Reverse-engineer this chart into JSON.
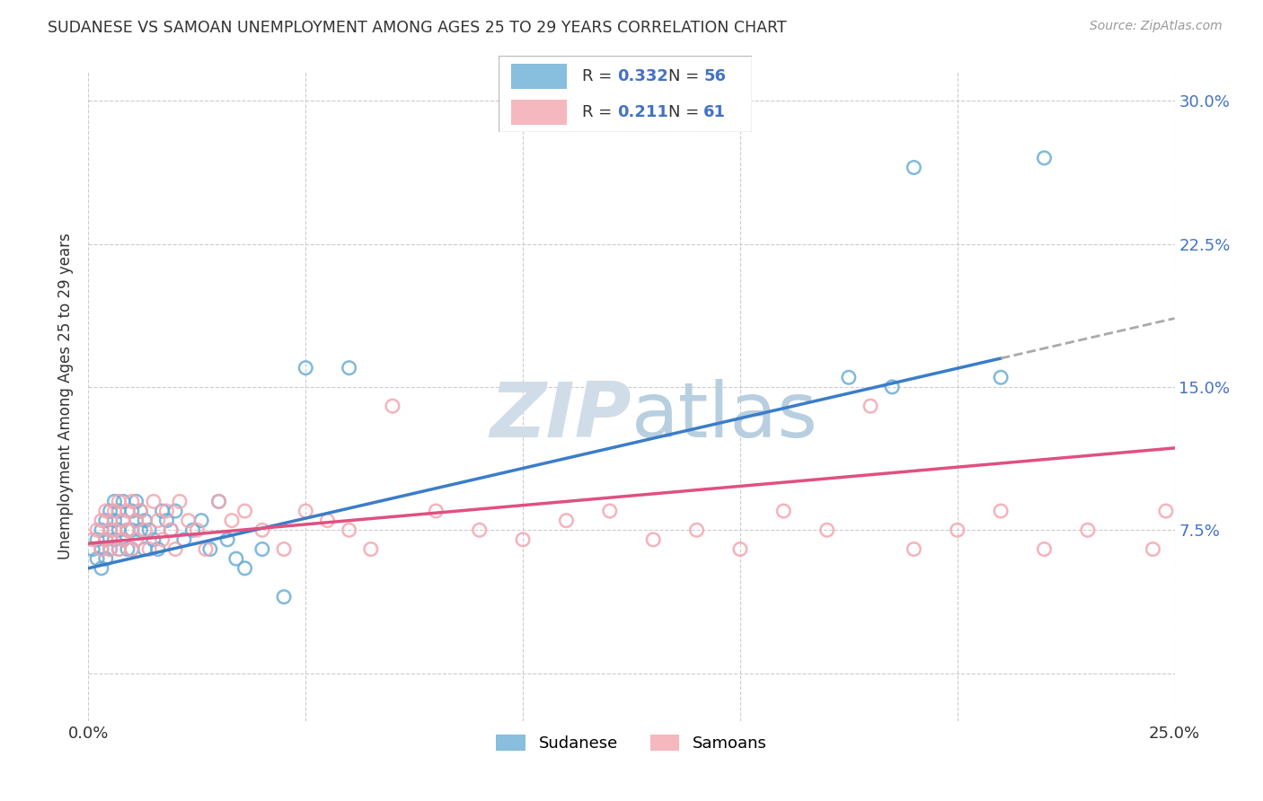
{
  "title": "SUDANESE VS SAMOAN UNEMPLOYMENT AMONG AGES 25 TO 29 YEARS CORRELATION CHART",
  "source": "Source: ZipAtlas.com",
  "ylabel": "Unemployment Among Ages 25 to 29 years",
  "xlim": [
    0.0,
    0.25
  ],
  "ylim": [
    -0.025,
    0.315
  ],
  "xticks": [
    0.0,
    0.05,
    0.1,
    0.15,
    0.2,
    0.25
  ],
  "xticklabels": [
    "0.0%",
    "",
    "",
    "",
    "",
    "25.0%"
  ],
  "yticks": [
    0.0,
    0.075,
    0.15,
    0.225,
    0.3
  ],
  "right_yticklabels": [
    "",
    "7.5%",
    "15.0%",
    "22.5%",
    "30.0%"
  ],
  "sudanese_R": "0.332",
  "sudanese_N": "56",
  "samoans_R": "0.211",
  "samoans_N": "61",
  "sudanese_color": "#6baed6",
  "samoans_color": "#f4a6b0",
  "trend_blue_color": "#3a7dc9",
  "trend_pink_color": "#e05080",
  "trend_dash_color": "#aaaaaa",
  "axis_label_color": "#4472c4",
  "text_color": "#333333",
  "source_color": "#999999",
  "grid_color": "#cccccc",
  "background_color": "#ffffff",
  "legend_box_color": "#eeeeee",
  "legend_border_color": "#bbbbbb",
  "watermark_color": "#d0dde8",
  "blue_trend_x0": 0.0,
  "blue_trend_y0": 0.055,
  "blue_trend_x1": 0.21,
  "blue_trend_y1": 0.165,
  "blue_trend_xdash_end": 0.25,
  "blue_trend_ydash_end": 0.195,
  "pink_trend_x0": 0.0,
  "pink_trend_y0": 0.068,
  "pink_trend_x1": 0.25,
  "pink_trend_y1": 0.118,
  "sudanese_x": [
    0.001,
    0.002,
    0.002,
    0.003,
    0.003,
    0.003,
    0.004,
    0.004,
    0.004,
    0.005,
    0.005,
    0.005,
    0.006,
    0.006,
    0.006,
    0.007,
    0.007,
    0.007,
    0.008,
    0.008,
    0.008,
    0.009,
    0.009,
    0.01,
    0.01,
    0.01,
    0.011,
    0.011,
    0.012,
    0.012,
    0.013,
    0.013,
    0.014,
    0.015,
    0.016,
    0.017,
    0.018,
    0.019,
    0.02,
    0.022,
    0.024,
    0.026,
    0.028,
    0.03,
    0.032,
    0.034,
    0.036,
    0.04,
    0.045,
    0.05,
    0.06,
    0.175,
    0.185,
    0.19,
    0.21,
    0.22
  ],
  "sudanese_y": [
    0.065,
    0.07,
    0.06,
    0.075,
    0.065,
    0.055,
    0.08,
    0.07,
    0.06,
    0.085,
    0.075,
    0.065,
    0.09,
    0.08,
    0.07,
    0.085,
    0.075,
    0.065,
    0.09,
    0.08,
    0.07,
    0.075,
    0.065,
    0.085,
    0.075,
    0.065,
    0.09,
    0.08,
    0.085,
    0.075,
    0.065,
    0.08,
    0.075,
    0.07,
    0.065,
    0.085,
    0.08,
    0.075,
    0.085,
    0.07,
    0.075,
    0.08,
    0.065,
    0.09,
    0.07,
    0.06,
    0.055,
    0.065,
    0.04,
    0.16,
    0.16,
    0.155,
    0.15,
    0.265,
    0.155,
    0.27
  ],
  "samoans_x": [
    0.001,
    0.002,
    0.003,
    0.003,
    0.004,
    0.004,
    0.005,
    0.005,
    0.006,
    0.006,
    0.007,
    0.007,
    0.008,
    0.008,
    0.009,
    0.009,
    0.01,
    0.01,
    0.011,
    0.011,
    0.012,
    0.013,
    0.014,
    0.015,
    0.016,
    0.017,
    0.018,
    0.019,
    0.02,
    0.021,
    0.023,
    0.025,
    0.027,
    0.03,
    0.033,
    0.036,
    0.04,
    0.045,
    0.05,
    0.055,
    0.06,
    0.065,
    0.07,
    0.08,
    0.09,
    0.1,
    0.11,
    0.12,
    0.13,
    0.14,
    0.15,
    0.16,
    0.17,
    0.18,
    0.19,
    0.2,
    0.21,
    0.22,
    0.23,
    0.245,
    0.248
  ],
  "samoans_y": [
    0.07,
    0.075,
    0.065,
    0.08,
    0.085,
    0.07,
    0.075,
    0.065,
    0.085,
    0.075,
    0.065,
    0.09,
    0.08,
    0.07,
    0.085,
    0.075,
    0.065,
    0.09,
    0.08,
    0.07,
    0.085,
    0.075,
    0.065,
    0.09,
    0.08,
    0.07,
    0.085,
    0.075,
    0.065,
    0.09,
    0.08,
    0.075,
    0.065,
    0.09,
    0.08,
    0.085,
    0.075,
    0.065,
    0.085,
    0.08,
    0.075,
    0.065,
    0.14,
    0.085,
    0.075,
    0.07,
    0.08,
    0.085,
    0.07,
    0.075,
    0.065,
    0.085,
    0.075,
    0.14,
    0.065,
    0.075,
    0.085,
    0.065,
    0.075,
    0.065,
    0.085
  ]
}
